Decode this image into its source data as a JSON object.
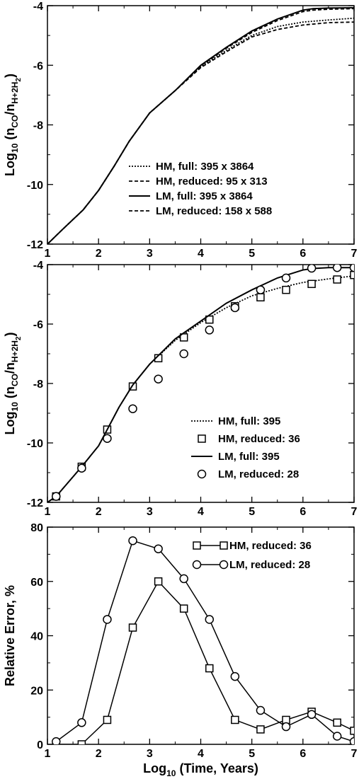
{
  "chart_data": [
    {
      "type": "line",
      "title": "",
      "xlabel": "",
      "ylabel": "Log10 (nCO/nH+2H2)",
      "xlim": [
        1,
        7
      ],
      "ylim": [
        -12,
        -4
      ],
      "xticks": [
        1,
        2,
        3,
        4,
        5,
        6,
        7
      ],
      "yticks": [
        -12,
        -10,
        -8,
        -6,
        -4
      ],
      "grid": false,
      "legend_position": "center-right",
      "series": [
        {
          "name": "HM, full: 395 x 3864",
          "style": "dotted",
          "x": [
            1.0,
            1.3,
            1.7,
            2.0,
            2.3,
            2.6,
            3.0,
            3.5,
            4.0,
            4.5,
            5.0,
            5.5,
            6.0,
            6.5,
            7.0
          ],
          "y": [
            -12.0,
            -11.5,
            -10.85,
            -10.2,
            -9.4,
            -8.55,
            -7.6,
            -6.85,
            -6.05,
            -5.5,
            -5.0,
            -4.7,
            -4.55,
            -4.48,
            -4.42
          ]
        },
        {
          "name": "HM, reduced: 95 x 313",
          "style": "dashed",
          "x": [
            1.0,
            1.3,
            1.7,
            2.0,
            2.3,
            2.6,
            3.0,
            3.5,
            4.0,
            4.5,
            5.0,
            5.5,
            6.0,
            6.5,
            7.0
          ],
          "y": [
            -12.0,
            -11.5,
            -10.85,
            -10.2,
            -9.4,
            -8.55,
            -7.6,
            -6.85,
            -6.08,
            -5.55,
            -5.05,
            -4.8,
            -4.65,
            -4.57,
            -4.55
          ]
        },
        {
          "name": "LM, full: 395 x 3864",
          "style": "solid",
          "x": [
            1.0,
            1.3,
            1.7,
            2.0,
            2.3,
            2.6,
            3.0,
            3.5,
            4.0,
            4.5,
            5.0,
            5.5,
            6.0,
            6.2,
            6.5,
            7.0
          ],
          "y": [
            -12.0,
            -11.5,
            -10.85,
            -10.2,
            -9.4,
            -8.55,
            -7.6,
            -6.85,
            -6.0,
            -5.4,
            -4.85,
            -4.45,
            -4.15,
            -4.1,
            -4.08,
            -4.07
          ]
        },
        {
          "name": "LM, reduced: 158 x 588",
          "style": "dashed",
          "x": [
            1.0,
            1.3,
            1.7,
            2.0,
            2.3,
            2.6,
            3.0,
            3.5,
            4.0,
            4.5,
            5.0,
            5.5,
            6.0,
            6.2,
            6.5,
            7.0
          ],
          "y": [
            -12.0,
            -11.5,
            -10.85,
            -10.2,
            -9.4,
            -8.55,
            -7.6,
            -6.85,
            -6.02,
            -5.43,
            -4.9,
            -4.5,
            -4.2,
            -4.15,
            -4.12,
            -4.1
          ]
        }
      ]
    },
    {
      "type": "line",
      "title": "",
      "xlabel": "",
      "ylabel": "Log10 (nCO/nH+2H2)",
      "xlim": [
        1,
        7
      ],
      "ylim": [
        -12,
        -4
      ],
      "xticks": [
        1,
        2,
        3,
        4,
        5,
        6,
        7
      ],
      "yticks": [
        -12,
        -10,
        -8,
        -6,
        -4
      ],
      "grid": false,
      "legend_position": "bottom-right",
      "series": [
        {
          "name": "HM, full:  395",
          "style": "dotted",
          "x": [
            1.0,
            1.17,
            1.67,
            2.0,
            2.17,
            2.4,
            2.67,
            3.0,
            3.5,
            4.0,
            4.5,
            5.0,
            5.5,
            6.0,
            6.5,
            7.0
          ],
          "y": [
            -12.0,
            -11.8,
            -10.8,
            -10.1,
            -9.55,
            -8.8,
            -8.05,
            -7.35,
            -6.55,
            -5.95,
            -5.45,
            -5.05,
            -4.8,
            -4.6,
            -4.48,
            -4.38
          ]
        },
        {
          "name": "HM, reduced:  36",
          "style": "squares",
          "x": [
            1.17,
            1.67,
            2.17,
            2.67,
            3.17,
            3.67,
            4.17,
            4.67,
            5.17,
            5.67,
            6.17,
            6.67,
            7.0
          ],
          "y": [
            -11.8,
            -10.8,
            -9.55,
            -8.1,
            -7.15,
            -6.45,
            -5.85,
            -5.4,
            -5.1,
            -4.85,
            -4.65,
            -4.5,
            -4.35
          ]
        },
        {
          "name": "LM, full:  395",
          "style": "solid",
          "x": [
            1.0,
            1.17,
            1.67,
            2.0,
            2.17,
            2.4,
            2.67,
            3.0,
            3.5,
            4.0,
            4.5,
            5.0,
            5.5,
            6.0,
            6.2,
            6.5,
            7.0
          ],
          "y": [
            -12.0,
            -11.8,
            -10.8,
            -10.1,
            -9.55,
            -8.8,
            -8.05,
            -7.35,
            -6.5,
            -5.9,
            -5.3,
            -4.85,
            -4.45,
            -4.18,
            -4.13,
            -4.1,
            -4.1
          ]
        },
        {
          "name": "LM, reduced:  28",
          "style": "circles",
          "x": [
            1.17,
            1.67,
            2.17,
            2.67,
            3.17,
            3.67,
            4.17,
            4.67,
            5.17,
            5.67,
            6.17,
            6.67,
            7.0
          ],
          "y": [
            -11.8,
            -10.85,
            -9.85,
            -8.85,
            -7.85,
            -7.0,
            -6.2,
            -5.45,
            -4.85,
            -4.45,
            -4.12,
            -4.1,
            -4.1
          ]
        }
      ]
    },
    {
      "type": "line",
      "title": "",
      "xlabel": "Log10 (Time, Years)",
      "ylabel": "Relative Error, %",
      "xlim": [
        1,
        7
      ],
      "ylim": [
        0,
        80
      ],
      "xticks": [
        1,
        2,
        3,
        4,
        5,
        6,
        7
      ],
      "yticks": [
        0,
        20,
        40,
        60,
        80
      ],
      "grid": false,
      "legend_position": "top-right",
      "series": [
        {
          "name": "HM, reduced:  36",
          "style": "squares",
          "x": [
            1.17,
            1.67,
            2.17,
            2.67,
            3.17,
            3.67,
            4.17,
            4.67,
            5.17,
            5.67,
            6.17,
            6.67,
            7.0
          ],
          "y": [
            0,
            0,
            9,
            43,
            60,
            50,
            28,
            9,
            5.5,
            9,
            12,
            8,
            5
          ]
        },
        {
          "name": "LM, reduced:  28",
          "style": "circles",
          "x": [
            1.17,
            1.67,
            2.17,
            2.67,
            3.17,
            3.67,
            4.17,
            4.67,
            5.17,
            5.67,
            6.17,
            6.67,
            7.0
          ],
          "y": [
            1,
            8,
            46,
            75,
            72,
            61,
            46,
            25,
            12.5,
            6.5,
            11,
            3,
            1
          ]
        }
      ]
    }
  ]
}
